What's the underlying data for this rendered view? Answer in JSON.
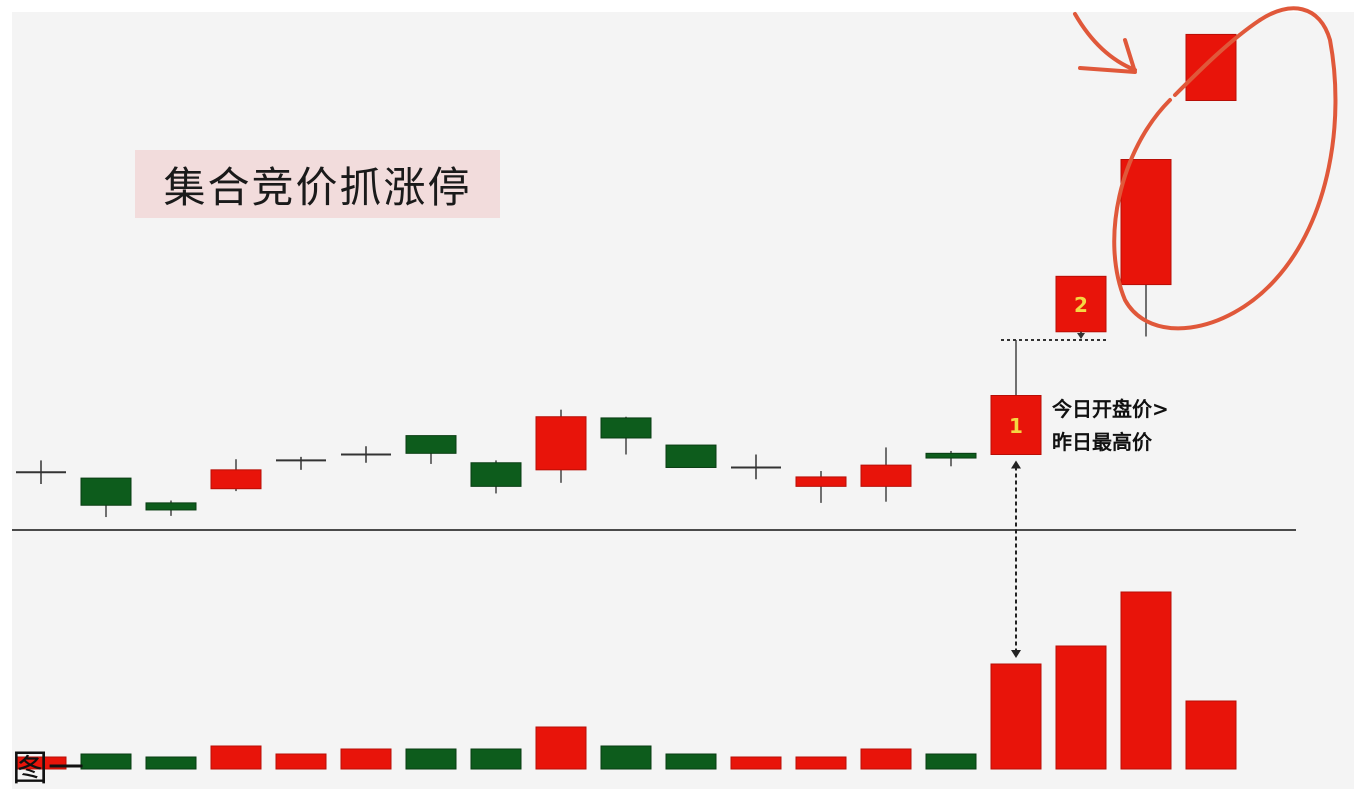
{
  "title": "集合竞价抓涨停",
  "caption": "图一",
  "annotation": {
    "line1": "今日开盘价>",
    "line2": "昨日最高价"
  },
  "markers": [
    "1",
    "2"
  ],
  "colors": {
    "up": "#e8140a",
    "down": "#0d5c1c",
    "background": "#f4f4f4",
    "highlight_circle": "#e0583a",
    "title_bg": "#f2dcdc"
  },
  "chart_data": {
    "type": "candlestick",
    "title": "集合竞价抓涨停",
    "xlabel": "",
    "ylabel": "",
    "grid": false,
    "candles": [
      {
        "open": 56,
        "close": 56,
        "high": 57,
        "low": 55,
        "dir": "doji"
      },
      {
        "open": 55.5,
        "close": 53.2,
        "high": 55.5,
        "low": 52.2,
        "dir": "down"
      },
      {
        "open": 53.4,
        "close": 52.8,
        "high": 53.6,
        "low": 52.3,
        "dir": "down"
      },
      {
        "open": 54.6,
        "close": 56.2,
        "high": 57.1,
        "low": 54.4,
        "dir": "up"
      },
      {
        "open": 57,
        "close": 57,
        "high": 57.3,
        "low": 56.2,
        "dir": "doji"
      },
      {
        "open": 57.5,
        "close": 57.5,
        "high": 58.2,
        "low": 56.8,
        "dir": "doji"
      },
      {
        "open": 59.1,
        "close": 57.6,
        "high": 59.1,
        "low": 56.7,
        "dir": "down"
      },
      {
        "open": 56.8,
        "close": 54.8,
        "high": 57,
        "low": 54.2,
        "dir": "down"
      },
      {
        "open": 56.2,
        "close": 60.7,
        "high": 61.3,
        "low": 55.1,
        "dir": "up"
      },
      {
        "open": 60.6,
        "close": 58.9,
        "high": 60.7,
        "low": 57.5,
        "dir": "down"
      },
      {
        "open": 58.3,
        "close": 56.4,
        "high": 58.3,
        "low": 56.4,
        "dir": "down"
      },
      {
        "open": 56.4,
        "close": 56.4,
        "high": 57.5,
        "low": 55.4,
        "dir": "doji"
      },
      {
        "open": 54.8,
        "close": 55.6,
        "high": 56.1,
        "low": 53.4,
        "dir": "up"
      },
      {
        "open": 54.8,
        "close": 56.6,
        "high": 58.1,
        "low": 53.5,
        "dir": "up"
      },
      {
        "open": 57.6,
        "close": 57.2,
        "high": 57.8,
        "low": 56.5,
        "dir": "down"
      },
      {
        "open": 57.5,
        "close": 62.5,
        "high": 67.2,
        "low": 57.5,
        "dir": "up",
        "marker": "1"
      },
      {
        "open": 67.9,
        "close": 72.6,
        "high": 72.6,
        "low": 67.4,
        "dir": "up",
        "marker": "2"
      },
      {
        "open": 71.9,
        "close": 82.5,
        "high": 82.5,
        "low": 67.5,
        "dir": "up"
      },
      {
        "open": 87.5,
        "close": 93.1,
        "high": 93.1,
        "low": 87.5,
        "dir": "up"
      }
    ],
    "volume": {
      "values": [
        12,
        15,
        12,
        23,
        15,
        20,
        20,
        20,
        42,
        23,
        15,
        12,
        12,
        20,
        15,
        105,
        123,
        177,
        68
      ],
      "dir": [
        "up",
        "down",
        "down",
        "up",
        "up",
        "up",
        "down",
        "down",
        "up",
        "down",
        "down",
        "up",
        "up",
        "up",
        "down",
        "up",
        "up",
        "up",
        "up"
      ]
    }
  }
}
